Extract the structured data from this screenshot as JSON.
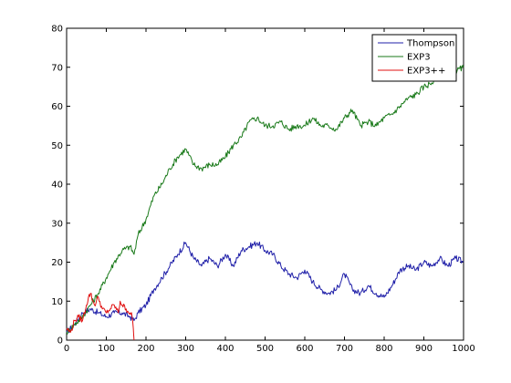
{
  "chart_data": {
    "type": "line",
    "title": "",
    "xlabel": "",
    "ylabel": "",
    "xlim": [
      0,
      1000
    ],
    "ylim": [
      0,
      80
    ],
    "xticks": [
      0,
      100,
      200,
      300,
      400,
      500,
      600,
      700,
      800,
      900,
      1000
    ],
    "yticks": [
      0,
      10,
      20,
      30,
      40,
      50,
      60,
      70,
      80
    ],
    "legend_position": "top-right",
    "grid": false,
    "series": [
      {
        "name": "Thompson",
        "color": "#1f1fa8",
        "x": [
          0,
          20,
          40,
          60,
          80,
          100,
          120,
          140,
          160,
          170,
          180,
          200,
          220,
          240,
          260,
          280,
          300,
          320,
          340,
          360,
          380,
          400,
          420,
          440,
          460,
          480,
          500,
          520,
          540,
          560,
          580,
          600,
          620,
          640,
          660,
          680,
          700,
          720,
          740,
          760,
          780,
          800,
          820,
          840,
          860,
          880,
          900,
          920,
          940,
          960,
          980,
          1000
        ],
        "y": [
          2,
          4,
          7,
          8,
          7,
          6,
          7,
          7,
          6,
          5,
          7,
          9,
          13,
          16,
          19,
          22,
          25,
          21,
          19,
          21,
          19,
          22,
          19,
          23,
          24,
          25,
          23,
          22,
          19,
          17,
          16,
          18,
          15,
          13,
          12,
          13,
          17,
          13,
          12,
          14,
          12,
          11,
          14,
          18,
          19,
          18,
          20,
          19,
          21,
          19,
          21,
          20
        ]
      },
      {
        "name": "EXP3",
        "color": "#1a7a1a",
        "x": [
          0,
          20,
          40,
          60,
          80,
          100,
          120,
          140,
          160,
          170,
          180,
          200,
          220,
          240,
          260,
          280,
          300,
          320,
          340,
          360,
          380,
          400,
          420,
          440,
          460,
          480,
          500,
          520,
          540,
          560,
          580,
          600,
          620,
          640,
          660,
          680,
          700,
          720,
          740,
          760,
          780,
          800,
          820,
          840,
          860,
          880,
          900,
          920,
          940,
          960,
          980,
          1000
        ],
        "y": [
          2,
          4,
          6,
          9,
          12,
          16,
          20,
          23,
          24,
          22,
          27,
          31,
          37,
          40,
          44,
          47,
          49,
          45,
          44,
          45,
          45,
          47,
          50,
          52,
          56,
          57,
          55,
          55,
          56,
          54,
          55,
          55,
          57,
          55,
          55,
          54,
          57,
          59,
          55,
          56,
          55,
          57,
          58,
          60,
          62,
          63,
          65,
          66,
          68,
          67,
          69,
          70
        ]
      },
      {
        "name": "EXP3++",
        "color": "#e01010",
        "x": [
          0,
          10,
          20,
          30,
          40,
          50,
          55,
          60,
          70,
          80,
          90,
          100,
          110,
          120,
          130,
          135,
          140,
          150,
          160,
          165,
          168,
          170
        ],
        "y": [
          3,
          2,
          5,
          6,
          5,
          9,
          11,
          12,
          9,
          11,
          8,
          7,
          8,
          9,
          7,
          10,
          9,
          8,
          7,
          6,
          3,
          0
        ]
      }
    ]
  }
}
